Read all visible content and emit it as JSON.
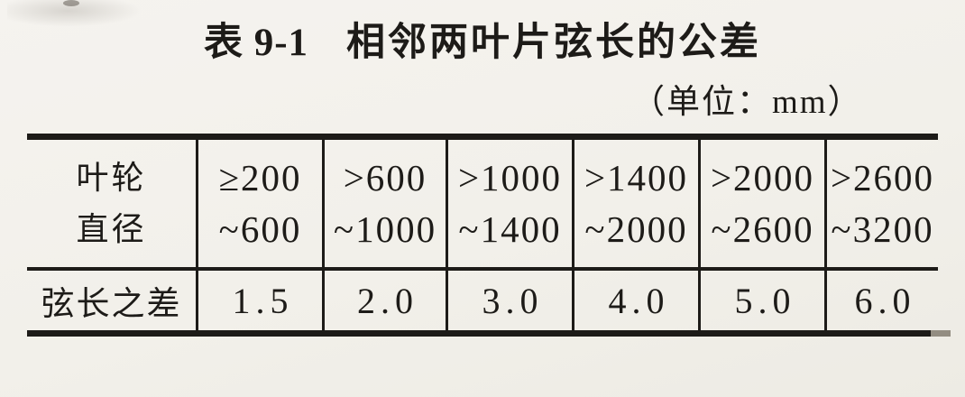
{
  "page": {
    "background": "#f2f0ea",
    "ink": "#1d1b18"
  },
  "title": {
    "table_number": "表 9-1",
    "text": "相邻两叶片弦长的公差"
  },
  "unit_note": "（单位：mm）",
  "table": {
    "row_headers": {
      "diameter_line1": "叶轮",
      "diameter_line2": "直径",
      "tolerance": "弦长之差"
    },
    "columns": [
      {
        "range_line1": "≥200",
        "range_line2": "~600",
        "tolerance": "1.5"
      },
      {
        "range_line1": ">600",
        "range_line2": "~1000",
        "tolerance": "2.0"
      },
      {
        "range_line1": ">1000",
        "range_line2": "~1400",
        "tolerance": "3.0"
      },
      {
        "range_line1": ">1400",
        "range_line2": "~2000",
        "tolerance": "4.0"
      },
      {
        "range_line1": ">2000",
        "range_line2": "~2600",
        "tolerance": "5.0"
      },
      {
        "range_line1": ">2600",
        "range_line2": "~3200",
        "tolerance": "6.0"
      }
    ]
  }
}
